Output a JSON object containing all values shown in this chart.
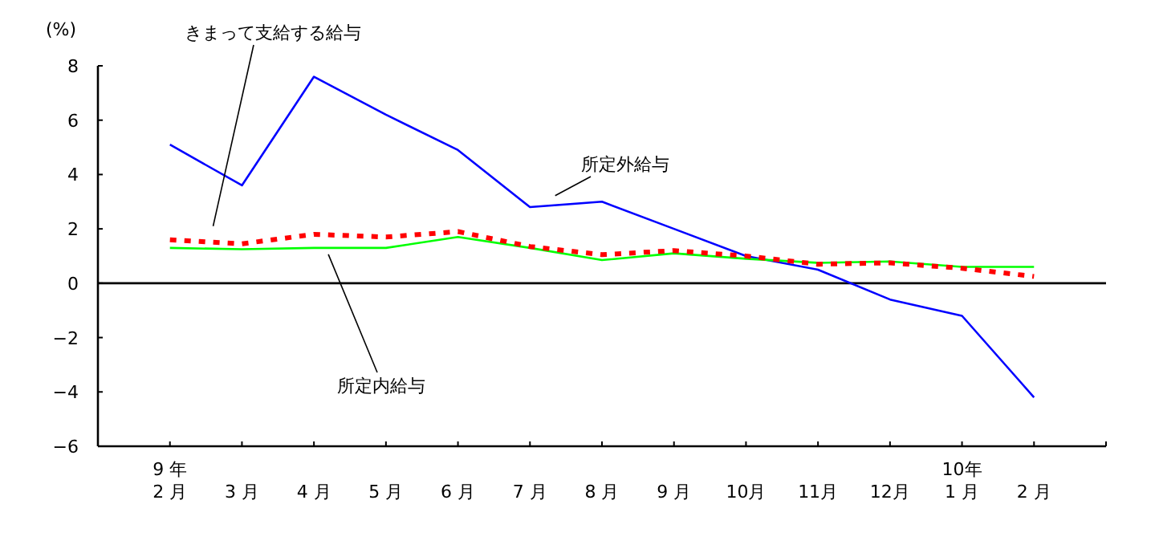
{
  "chart_data": {
    "type": "line",
    "ylabel": "(%)",
    "categories": [
      "9 年\n2 月",
      "3 月",
      "4 月",
      "5 月",
      "6 月",
      "7 月",
      "8 月",
      "9 月",
      "10月",
      "11月",
      "12月",
      "10年\n1 月",
      "2 月"
    ],
    "ylim": [
      -6,
      8
    ],
    "yticks": [
      8,
      6,
      4,
      2,
      0,
      {
        "value": -2,
        "label": "−2"
      },
      {
        "value": -4,
        "label": "−4"
      },
      {
        "value": -6,
        "label": "−6"
      }
    ],
    "series": [
      {
        "name": "所定外給与",
        "color": "#0000ff",
        "line_style": "solid",
        "values": [
          5.1,
          3.6,
          7.6,
          6.2,
          4.9,
          2.8,
          3.0,
          2.0,
          1.0,
          0.5,
          -0.6,
          -1.2,
          -4.2
        ]
      },
      {
        "name": "所定内給与",
        "color": "#00ff00",
        "line_style": "solid",
        "values": [
          1.3,
          1.25,
          1.3,
          1.3,
          1.7,
          1.3,
          0.85,
          1.1,
          0.9,
          0.75,
          0.8,
          0.6,
          0.6
        ]
      },
      {
        "name": "きまって支給する給与",
        "color": "#ff0000",
        "line_style": "dotted",
        "values": [
          1.6,
          1.45,
          1.8,
          1.7,
          1.9,
          1.35,
          1.05,
          1.2,
          1.0,
          0.7,
          0.75,
          0.55,
          0.25
        ]
      }
    ],
    "ref_lines": [
      {
        "axis": "y",
        "value": 0,
        "color": "#000000"
      }
    ],
    "grid": false,
    "marker": "none"
  }
}
